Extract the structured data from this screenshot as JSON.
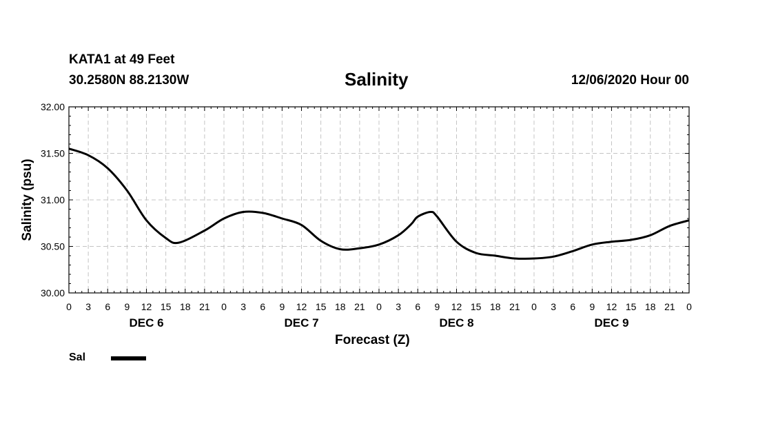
{
  "header": {
    "station": "KATA1 at 49 Feet",
    "coords": "30.2580N 88.2130W",
    "title": "Salinity",
    "issued": "12/06/2020 Hour 00"
  },
  "legend": {
    "label": "Sal",
    "color": "#000000"
  },
  "chart_data": {
    "type": "line",
    "title": "Salinity",
    "xlabel": "Forecast (Z)",
    "ylabel": "Salinity (psu)",
    "ylim": [
      30.0,
      32.0
    ],
    "xlim_hours": [
      0,
      96
    ],
    "grid": true,
    "y_ticks": [
      "30.00",
      "30.50",
      "31.00",
      "31.50",
      "32.00"
    ],
    "x_tick_labels": [
      "0",
      "3",
      "6",
      "9",
      "12",
      "15",
      "18",
      "21",
      "0",
      "3",
      "6",
      "9",
      "12",
      "15",
      "18",
      "21",
      "0",
      "3",
      "6",
      "9",
      "12",
      "15",
      "18",
      "21",
      "0",
      "3",
      "6",
      "9",
      "12",
      "15",
      "18",
      "21",
      "0"
    ],
    "day_labels": [
      {
        "label": "DEC 6",
        "hour": 12
      },
      {
        "label": "DEC 7",
        "hour": 36
      },
      {
        "label": "DEC 8",
        "hour": 60
      },
      {
        "label": "DEC 9",
        "hour": 84
      }
    ],
    "series": [
      {
        "name": "Sal",
        "x_hours": [
          0,
          3,
          6,
          9,
          12,
          15,
          17,
          21,
          24,
          27,
          30,
          33,
          36,
          39,
          42,
          45,
          48,
          51,
          53,
          54,
          56,
          57,
          60,
          63,
          66,
          69,
          72,
          75,
          78,
          81,
          84,
          87,
          90,
          93,
          96
        ],
        "values": [
          31.55,
          31.48,
          31.34,
          31.1,
          30.78,
          30.59,
          30.54,
          30.67,
          30.8,
          30.87,
          30.86,
          30.8,
          30.73,
          30.56,
          30.47,
          30.48,
          30.52,
          30.62,
          30.74,
          30.82,
          30.87,
          30.82,
          30.55,
          30.43,
          30.4,
          30.37,
          30.37,
          30.39,
          30.45,
          30.52,
          30.55,
          30.57,
          30.62,
          30.72,
          30.78
        ]
      }
    ]
  }
}
